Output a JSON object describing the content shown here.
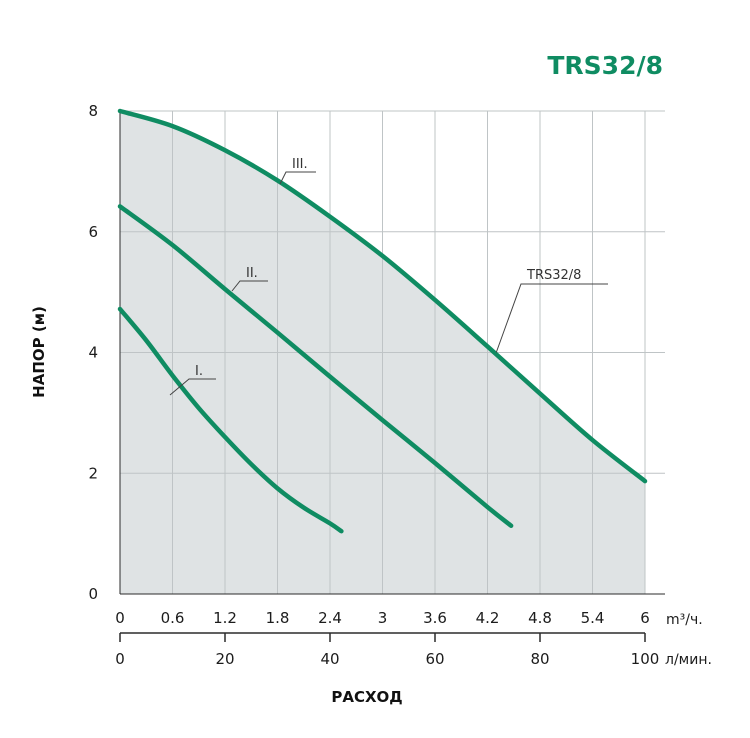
{
  "chart_data": {
    "type": "line",
    "title": "TRS32/8",
    "ylabel": "НАПОР (м)",
    "xlabel": "РАСХОД",
    "x_unit_primary": "m³/ч.",
    "x_unit_secondary": "л/мин.",
    "xlim": [
      0,
      6
    ],
    "ylim": [
      0,
      8
    ],
    "x_ticks": [
      "0",
      "0.6",
      "1.2",
      "1.8",
      "2.4",
      "3",
      "3.6",
      "4.2",
      "4.8",
      "5.4",
      "6"
    ],
    "x2_ticks": [
      "0",
      "20",
      "40",
      "60",
      "80",
      "100"
    ],
    "x2_tick_values": [
      0,
      20,
      40,
      60,
      80,
      100
    ],
    "y_ticks": [
      "0",
      "2",
      "4",
      "6",
      "8"
    ],
    "grid": true,
    "series": [
      {
        "name": "I.",
        "x": [
          0,
          0.3,
          0.6,
          0.9,
          1.2,
          1.5,
          1.8,
          2.1,
          2.4,
          2.53
        ],
        "y": [
          4.72,
          4.2,
          3.62,
          3.08,
          2.6,
          2.15,
          1.75,
          1.43,
          1.17,
          1.04
        ]
      },
      {
        "name": "II.",
        "x": [
          0,
          0.6,
          1.2,
          1.8,
          2.4,
          3.0,
          3.6,
          4.2,
          4.47
        ],
        "y": [
          6.42,
          5.78,
          5.05,
          4.33,
          3.6,
          2.88,
          2.17,
          1.44,
          1.13
        ]
      },
      {
        "name": "III.",
        "x": [
          0,
          0.6,
          1.2,
          1.8,
          2.4,
          3.0,
          3.6,
          4.2,
          4.8,
          5.4,
          6.0
        ],
        "y": [
          8.0,
          7.75,
          7.35,
          6.85,
          6.25,
          5.6,
          4.87,
          4.1,
          3.32,
          2.55,
          1.87
        ]
      }
    ],
    "annotations": [
      {
        "text": "TRS32/8",
        "points_to_series": "III."
      }
    ]
  },
  "colors": {
    "curve": "#0f8c62",
    "title": "#0f8c62",
    "fill": "#dfe3e4",
    "grid": "#bfc4c6",
    "axis": "#2b2b2b"
  }
}
